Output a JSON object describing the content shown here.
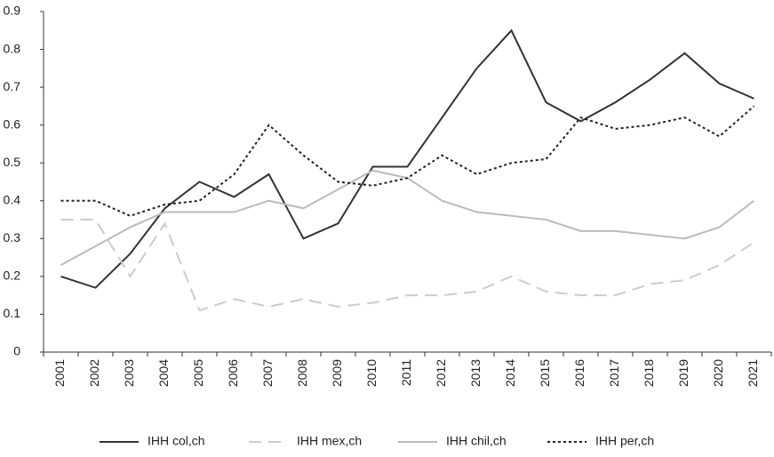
{
  "chart_data": {
    "type": "line",
    "categories": [
      "2001",
      "2002",
      "2003",
      "2004",
      "2005",
      "2006",
      "2007",
      "2008",
      "2009",
      "2010",
      "2011",
      "2012",
      "2013",
      "2014",
      "2015",
      "2016",
      "2017",
      "2018",
      "2019",
      "2020",
      "2021"
    ],
    "series": [
      {
        "name": "IHH col,ch",
        "color": "#333333",
        "dash": "solid",
        "values": [
          0.2,
          0.17,
          0.26,
          0.38,
          0.45,
          0.41,
          0.47,
          0.3,
          0.34,
          0.49,
          0.49,
          0.62,
          0.75,
          0.85,
          0.66,
          0.61,
          0.66,
          0.72,
          0.79,
          0.71,
          0.67
        ]
      },
      {
        "name": "IHH mex,ch",
        "color": "#cccccc",
        "dash": "dashed",
        "values": [
          0.35,
          0.35,
          0.2,
          0.34,
          0.11,
          0.14,
          0.12,
          0.14,
          0.12,
          0.13,
          0.15,
          0.15,
          0.16,
          0.2,
          0.16,
          0.15,
          0.15,
          0.18,
          0.19,
          0.23,
          0.29
        ]
      },
      {
        "name": "IHH chil,ch",
        "color": "#bbbbbb",
        "dash": "solid",
        "values": [
          0.23,
          0.28,
          0.33,
          0.37,
          0.37,
          0.37,
          0.4,
          0.38,
          0.43,
          0.48,
          0.46,
          0.4,
          0.37,
          0.36,
          0.35,
          0.32,
          0.32,
          0.31,
          0.3,
          0.33,
          0.4
        ]
      },
      {
        "name": "IHH per,ch",
        "color": "#222222",
        "dash": "dotted",
        "values": [
          0.4,
          0.4,
          0.36,
          0.39,
          0.4,
          0.47,
          0.6,
          0.52,
          0.45,
          0.44,
          0.46,
          0.52,
          0.47,
          0.5,
          0.51,
          0.62,
          0.59,
          0.6,
          0.62,
          0.57,
          0.65
        ]
      }
    ],
    "ylim": [
      0,
      0.9
    ],
    "yticks": [
      0,
      0.1,
      0.2,
      0.3,
      0.4,
      0.5,
      0.6,
      0.7,
      0.8,
      0.9
    ],
    "grid": false,
    "legend": "bottom"
  }
}
